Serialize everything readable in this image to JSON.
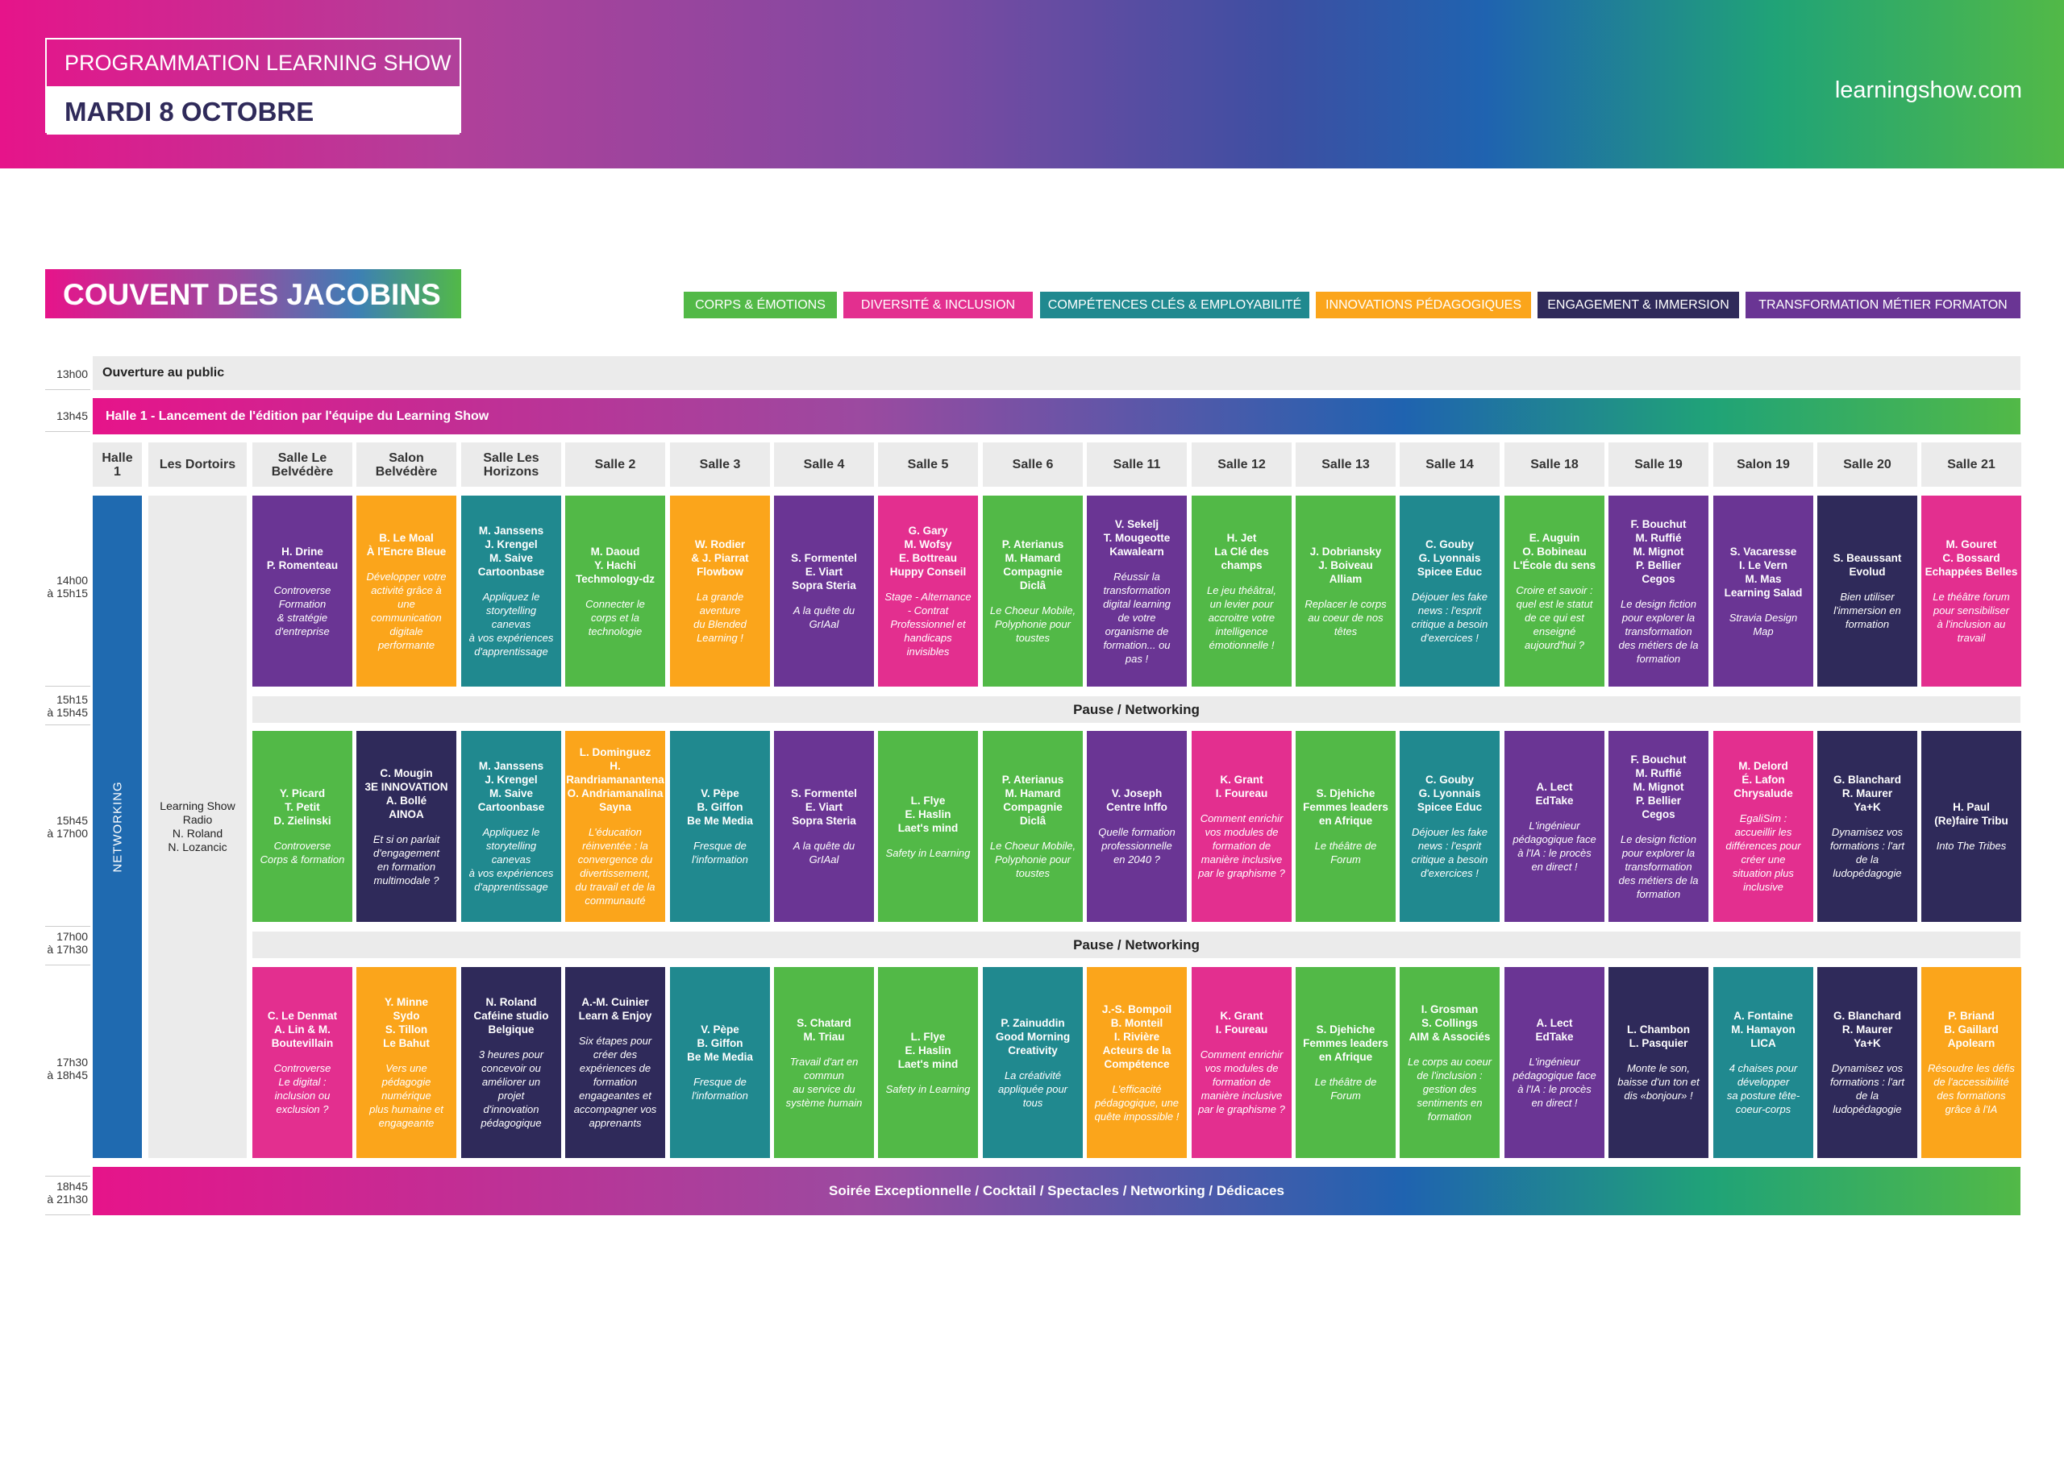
{
  "header": {
    "title_top": "PROGRAMMATION LEARNING SHOW",
    "title_date": "MARDI 8 OCTOBRE",
    "site": "learningshow.com"
  },
  "venue": "COUVENT DES JACOBINS",
  "colors": {
    "green": "#52b947",
    "pink": "#e32f8f",
    "teal": "#20898f",
    "orange": "#fba51b",
    "dark": "#2f2a5a",
    "purple": "#6a3594"
  },
  "legend": [
    {
      "label": "CORPS & ÉMOTIONS",
      "color": "#52b947"
    },
    {
      "label": "DIVERSITÉ & INCLUSION",
      "color": "#e32f8f"
    },
    {
      "label": "COMPÉTENCES CLÉS & EMPLOYABILITÉ",
      "color": "#20898f"
    },
    {
      "label": "INNOVATIONS PÉDAGOGIQUES",
      "color": "#fba51b"
    },
    {
      "label": "ENGAGEMENT & IMMERSION",
      "color": "#2f2a5a"
    },
    {
      "label": "TRANSFORMATION MÉTIER FORMATON",
      "color": "#6a3594"
    }
  ],
  "times": {
    "t1300": "13h00",
    "t1345": "13h45",
    "t1400": "14h00\nà 15h15",
    "t1515": "15h15\nà 15h45",
    "t1545": "15h45\nà 17h00",
    "t1700": "17h00\nà 17h30",
    "t1730": "17h30\nà 18h45",
    "t1845": "18h45\nà 21h30"
  },
  "bars": {
    "opening": "Ouverture au public",
    "launch": "Halle 1 - Lancement de l'édition par l'équipe du Learning Show",
    "pause": "Pause / Networking",
    "evening": "Soirée Exceptionnelle / Cocktail / Spectacles / Networking / Dédicaces"
  },
  "col_halle": "Halle\n1",
  "col_dortoirs": "Les Dortoirs",
  "networking": "NETWORKING",
  "radio": "Learning Show\nRadio\nN. Roland\nN. Lozancic",
  "rooms": [
    "Salle Le\nBelvédère",
    "Salon\nBelvédère",
    "Salle Les\nHorizons",
    "Salle 2",
    "Salle 3",
    "Salle 4",
    "Salle 5",
    "Salle 6",
    "Salle 11",
    "Salle 12",
    "Salle 13",
    "Salle 14",
    "Salle 18",
    "Salle 19",
    "Salon 19",
    "Salle 20",
    "Salle 21"
  ],
  "slot1": [
    {
      "c": "purple",
      "sp": "H. Drine\nP. Romenteau",
      "ti": "Controverse\nFormation\n& stratégie\nd'entreprise"
    },
    {
      "c": "orange",
      "sp": "B. Le Moal\nÀ l'Encre Bleue",
      "ti": "Développer votre\nactivité grâce à\nune\ncommunication\ndigitale\nperformante"
    },
    {
      "c": "teal",
      "sp": "M. Janssens\nJ. Krengel\nM. Saive\nCartoonbase",
      "ti": "Appliquez le\nstorytelling\ncanevas\nà vos expériences\nd'apprentissage"
    },
    {
      "c": "green",
      "sp": "M. Daoud\nY. Hachi\nTechmology-dz",
      "ti": "Connecter le\ncorps et la\ntechnologie"
    },
    {
      "c": "orange",
      "sp": "W. Rodier\n& J. Piarrat\nFlowbow",
      "ti": "La grande\naventure\ndu Blended\nLearning !"
    },
    {
      "c": "purple",
      "sp": "S. Formentel\nE. Viart\nSopra Steria",
      "ti": "A la quête du\nGrIAal"
    },
    {
      "c": "pink",
      "sp": "G. Gary\nM. Wofsy\nE. Bottreau\nHuppy Conseil",
      "ti": "Stage - Alternance\n- Contrat\nProfessionnel et\nhandicaps\ninvisibles"
    },
    {
      "c": "green",
      "sp": "P. Aterianus\nM. Hamard\nCompagnie\nDiclâ",
      "ti": "Le Choeur Mobile,\nPolyphonie pour\ntoustes"
    },
    {
      "c": "purple",
      "sp": "V. Sekelj\nT. Mougeotte\nKawalearn",
      "ti": "Réussir la\ntransformation\ndigital learning\nde votre\norganisme de\nformation... ou\npas !"
    },
    {
      "c": "green",
      "sp": "H. Jet\nLa Clé des\nchamps",
      "ti": "Le jeu théâtral,\nun levier pour\naccroitre votre\nintelligence\némotionnelle !"
    },
    {
      "c": "green",
      "sp": "J. Dobriansky\nJ. Boiveau\nAlliam",
      "ti": "Replacer le corps\nau coeur de nos\ntêtes"
    },
    {
      "c": "teal",
      "sp": "C. Gouby\nG. Lyonnais\nSpicee Educ",
      "ti": "Déjouer les fake\nnews : l'esprit\ncritique a besoin\nd'exercices !"
    },
    {
      "c": "green",
      "sp": "E. Auguin\nO. Bobineau\nL'École du sens",
      "ti": "Croire et savoir :\nquel est le statut\nde ce qui est\nenseigné\naujourd'hui ?"
    },
    {
      "c": "purple",
      "sp": "F. Bouchut\nM. Ruffié\nM. Mignot\nP. Bellier\nCegos",
      "ti": "Le design fiction\npour explorer la\ntransformation\ndes métiers de la\nformation"
    },
    {
      "c": "purple",
      "sp": "S. Vacaresse\nI. Le Vern\nM. Mas\nLearning Salad",
      "ti": "Stravia Design\nMap"
    },
    {
      "c": "dark",
      "sp": "S. Beaussant\nEvolud",
      "ti": "Bien utiliser\nl'immersion en\nformation"
    },
    {
      "c": "pink",
      "sp": "M. Gouret\nC. Bossard\nEchappées Belles",
      "ti": "Le théâtre forum\npour sensibiliser\nà l'inclusion au\ntravail"
    }
  ],
  "slot2": [
    {
      "c": "green",
      "sp": "Y. Picard\nT. Petit\nD. Zielinski",
      "ti": "Controverse\nCorps & formation"
    },
    {
      "c": "dark",
      "sp": "C. Mougin\n3E INNOVATION\nA. Bollé\nAINOA",
      "ti": "Et si on parlait\nd'engagement\nen formation\nmultimodale ?"
    },
    {
      "c": "teal",
      "sp": "M. Janssens\nJ. Krengel\nM. Saive\nCartoonbase",
      "ti": "Appliquez le\nstorytelling\ncanevas\nà vos expériences\nd'apprentissage"
    },
    {
      "c": "orange",
      "sp": "L. Dominguez\nH.\nRandriamanantena\nO. Andriamanalina\nSayna",
      "ti": "L'éducation\nréinventée : la\nconvergence du\ndivertissement,\ndu travail et de la\ncommunauté"
    },
    {
      "c": "teal",
      "sp": "V. Pèpe\nB. Giffon\nBe Me Media",
      "ti": "Fresque de\nl'information"
    },
    {
      "c": "purple",
      "sp": "S. Formentel\nE. Viart\nSopra Steria",
      "ti": "A la quête du\nGrIAal"
    },
    {
      "c": "green",
      "sp": "L. Flye\nE. Haslin\nLaet's mind",
      "ti": "Safety in Learning"
    },
    {
      "c": "green",
      "sp": "P. Aterianus\nM. Hamard\nCompagnie\nDiclâ",
      "ti": "Le Choeur Mobile,\nPolyphonie pour\ntoustes"
    },
    {
      "c": "purple",
      "sp": "V. Joseph\nCentre Inffo",
      "ti": "Quelle formation\nprofessionnelle\nen 2040 ?"
    },
    {
      "c": "pink",
      "sp": "K. Grant\nI. Foureau",
      "ti": "Comment enrichir\nvos modules de\nformation de\nmanière inclusive\npar le graphisme ?"
    },
    {
      "c": "green",
      "sp": "S. Djehiche\nFemmes leaders\nen Afrique",
      "ti": "Le théâtre de\nForum"
    },
    {
      "c": "teal",
      "sp": "C. Gouby\nG. Lyonnais\nSpicee Educ",
      "ti": "Déjouer les fake\nnews : l'esprit\ncritique a besoin\nd'exercices !"
    },
    {
      "c": "purple",
      "sp": "A. Lect\nEdTake",
      "ti": "L'ingénieur\npédagogique face\nà l'IA : le procès\nen direct !"
    },
    {
      "c": "purple",
      "sp": "F. Bouchut\nM. Ruffié\nM. Mignot\nP. Bellier\nCegos",
      "ti": "Le design fiction\npour explorer la\ntransformation\ndes métiers de la\nformation"
    },
    {
      "c": "pink",
      "sp": "M. Delord\nÉ. Lafon\nChrysalude",
      "ti": "EgaliSim :\naccueillir les\ndifférences pour\ncréer une\nsituation plus\ninclusive"
    },
    {
      "c": "dark",
      "sp": "G. Blanchard\nR. Maurer\nYa+K",
      "ti": "Dynamisez vos\nformations : l'art\nde la\nludopédagogie"
    },
    {
      "c": "dark",
      "sp": "H. Paul\n(Re)faire Tribu",
      "ti": "Into The Tribes"
    }
  ],
  "slot3": [
    {
      "c": "pink",
      "sp": "C. Le Denmat\nA. Lin & M.\nBoutevillain",
      "ti": "Controverse\nLe digital :\ninclusion ou\nexclusion ?"
    },
    {
      "c": "orange",
      "sp": "Y. Minne\nSydo\nS. Tillon\nLe Bahut",
      "ti": "Vers une\npédagogie\nnumérique\nplus humaine et\nengageante"
    },
    {
      "c": "dark",
      "sp": "N. Roland\nCaféine studio\nBelgique",
      "ti": "3 heures pour\nconcevoir ou\naméliorer un\nprojet\nd'innovation\npédagogique"
    },
    {
      "c": "dark",
      "sp": "A.-M. Cuinier\nLearn & Enjoy",
      "ti": "Six étapes pour\ncréer des\nexpériences de\nformation\nengageantes et\naccompagner vos\napprenants"
    },
    {
      "c": "teal",
      "sp": "V. Pèpe\nB. Giffon\nBe Me Media",
      "ti": "Fresque de\nl'information"
    },
    {
      "c": "green",
      "sp": "S. Chatard\nM. Triau",
      "ti": "Travail d'art en\ncommun\nau service du\nsystème humain"
    },
    {
      "c": "green",
      "sp": "L. Flye\nE. Haslin\nLaet's mind",
      "ti": "Safety in Learning"
    },
    {
      "c": "teal",
      "sp": "P. Zainuddin\nGood Morning\nCreativity",
      "ti": "La créativité\nappliquée pour\ntous"
    },
    {
      "c": "orange",
      "sp": "J.-S. Bompoil\nB. Monteil\nI. Rivière\nActeurs de la\nCompétence",
      "ti": "L'efficacité\npédagogique, une\nquête impossible !"
    },
    {
      "c": "pink",
      "sp": "K. Grant\nI. Foureau",
      "ti": "Comment enrichir\nvos modules de\nformation de\nmanière inclusive\npar le graphisme ?"
    },
    {
      "c": "green",
      "sp": "S. Djehiche\nFemmes leaders\nen Afrique",
      "ti": "Le théâtre de\nForum"
    },
    {
      "c": "green",
      "sp": "I. Grosman\nS. Collings\nAIM & Associés",
      "ti": "Le corps au coeur\nde l'inclusion :\ngestion des\nsentiments en\nformation"
    },
    {
      "c": "purple",
      "sp": "A. Lect\nEdTake",
      "ti": "L'ingénieur\npédagogique face\nà l'IA : le procès\nen direct !"
    },
    {
      "c": "dark",
      "sp": "L. Chambon\nL. Pasquier",
      "ti": "Monte le son,\nbaisse d'un ton et\ndis «bonjour» !"
    },
    {
      "c": "teal",
      "sp": "A. Fontaine\nM. Hamayon\nLICA",
      "ti": "4 chaises pour\ndévelopper\nsa posture tête-\ncoeur-corps"
    },
    {
      "c": "dark",
      "sp": "G. Blanchard\nR. Maurer\nYa+K",
      "ti": "Dynamisez vos\nformations : l'art\nde la\nludopédagogie"
    },
    {
      "c": "orange",
      "sp": "P. Briand\nB. Gaillard\nApolearn",
      "ti": "Résoudre les défis\nde l'accessibilité\ndes formations\ngrâce à l'IA"
    }
  ]
}
